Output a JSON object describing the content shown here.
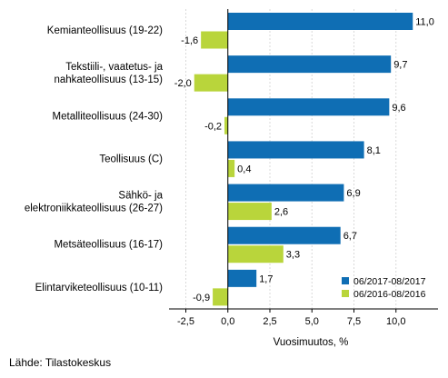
{
  "chart_data": {
    "type": "bar",
    "orientation": "horizontal",
    "categories": [
      [
        "Kemianteollisuus (19-22)"
      ],
      [
        "Tekstiili-, vaatetus- ja",
        "nahkateollisuus (13-15)"
      ],
      [
        "Metalliteollisuus (24-30)"
      ],
      [
        "Teollisuus (C)"
      ],
      [
        "Sähkö- ja",
        "elektroniikkateollisuus (26-27)"
      ],
      [
        "Metsäteollisuus (16-17)"
      ],
      [
        "Elintarviketeollisuus (10-11)"
      ]
    ],
    "series": [
      {
        "name": "06/2017-08/2017",
        "color": "#0f6eb4",
        "values": [
          11.0,
          9.7,
          9.6,
          8.1,
          6.9,
          6.7,
          1.7
        ],
        "labels": [
          "11,0",
          "9,7",
          "9,6",
          "8,1",
          "6,9",
          "6,7",
          "1,7"
        ]
      },
      {
        "name": "06/2016-08/2016",
        "color": "#b9d53b",
        "values": [
          -1.6,
          -2.0,
          -0.2,
          0.4,
          2.6,
          3.3,
          -0.9
        ],
        "labels": [
          "-1,6",
          "-2,0",
          "-0,2",
          "0,4",
          "2,6",
          "3,3",
          "-0,9"
        ]
      }
    ],
    "xlabel": "Vuosimuutos, %",
    "xlim": [
      -3.5,
      12.5
    ],
    "xticks": [
      -2.5,
      0.0,
      2.5,
      5.0,
      7.5,
      10.0
    ],
    "xtick_labels": [
      "-2,5",
      "0,0",
      "2,5",
      "5,0",
      "7,5",
      "10,0"
    ],
    "grid": "vertical",
    "legend_position": "bottom-right"
  },
  "source": "Lähde: Tilastokeskus"
}
